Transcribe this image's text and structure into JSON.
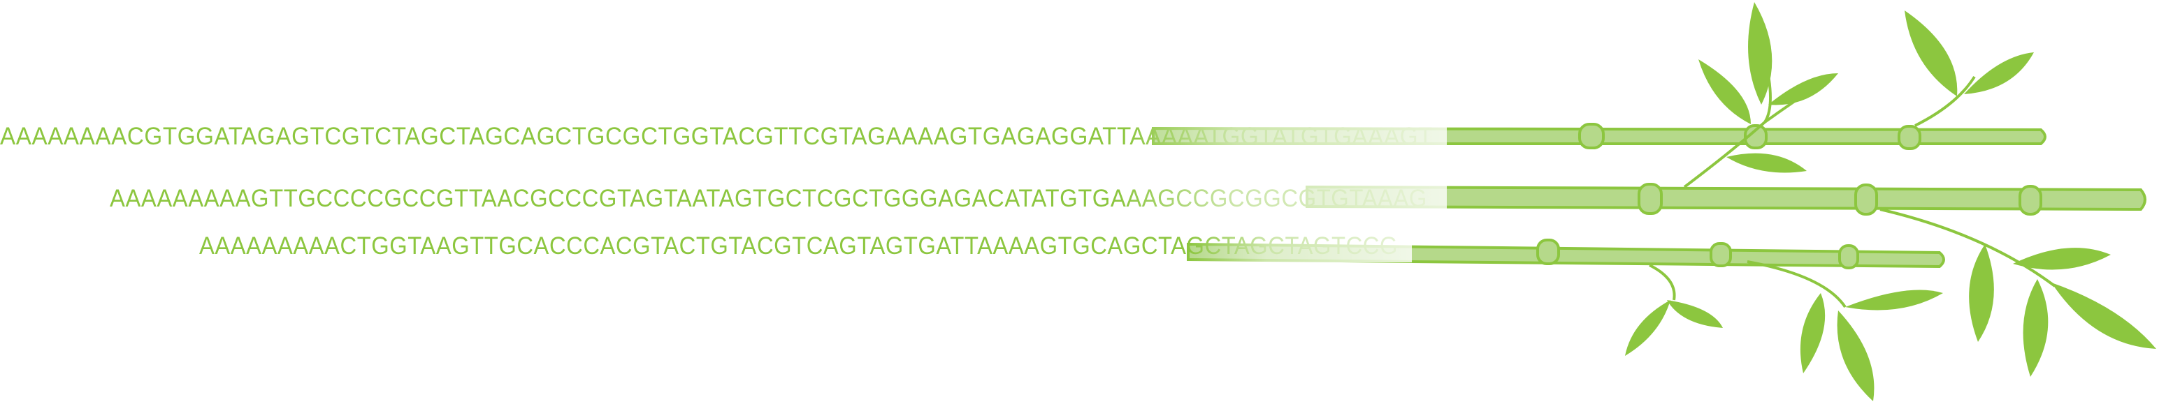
{
  "sequences": [
    {
      "text": "AAAAAAAACGTGGATAGAGTCGTCTAGCTAGCAGCTGCGCTGGTACGTTCGTAGAAAAGTGAGAGGATTAAAAATGGTATGTGAAAGT"
    },
    {
      "text": "AAAAAAAAAGTTGCCCCGCCGTTAACGCCCGTAGTAATAGTGCTCGCTGGGAGACATATGTGAAAGCCGCGGCGTGTAAAG"
    },
    {
      "text": "AAAAAAAAACTGGTAAGTTGCACCCACGTACTGTACGTCAGTAGTGATTAAAAGTGCAGCTAGCTAGCTAGTCCG"
    }
  ],
  "colors": {
    "text": "#8cc63f",
    "stalk": "#b5d98a",
    "stalk_edge": "#8cc63f",
    "leaf": "#8cc63f"
  }
}
